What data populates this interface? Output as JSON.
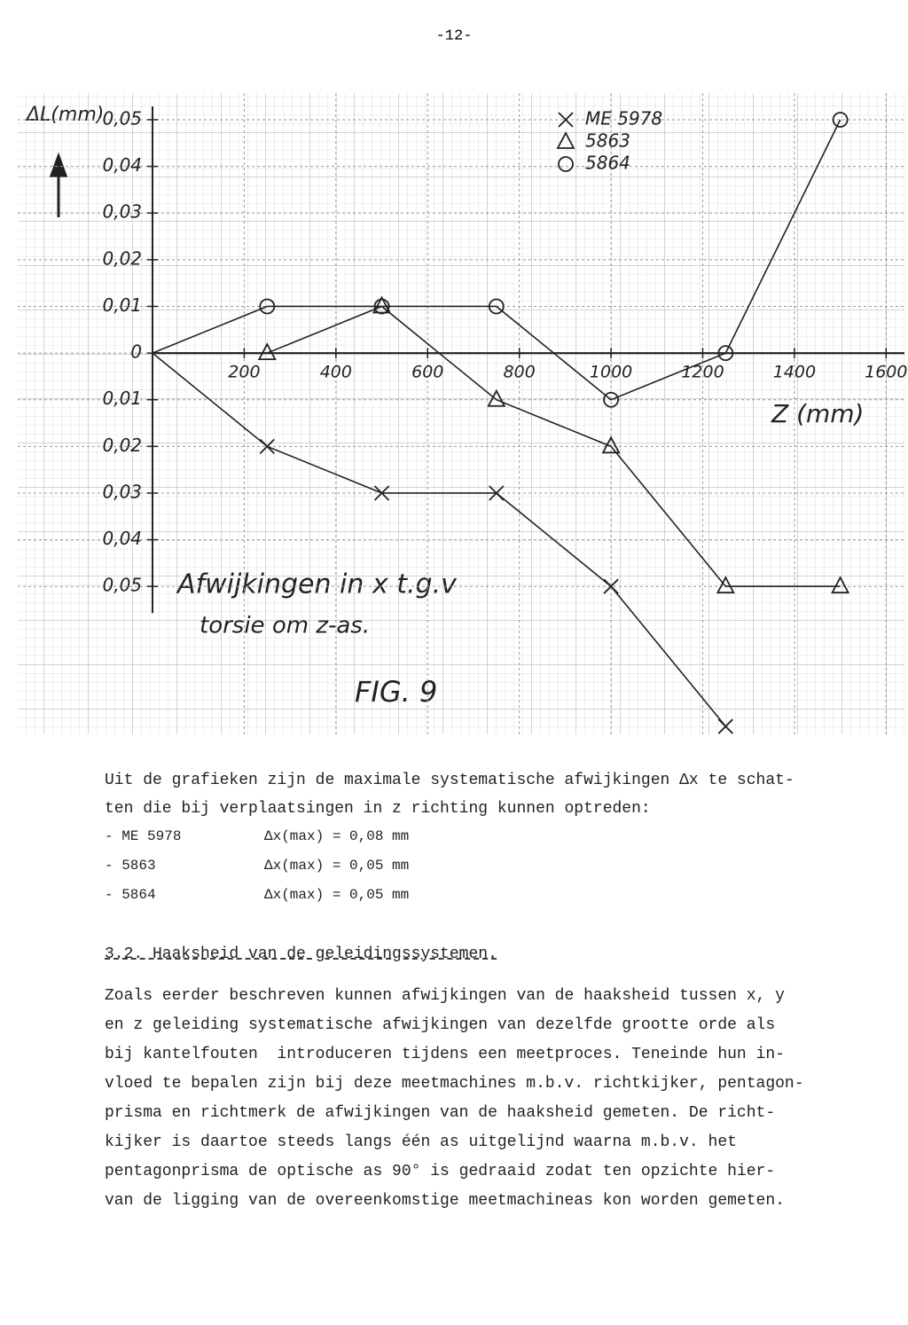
{
  "page_number": "-12-",
  "chart_data": {
    "type": "line",
    "y_label": "ΔL(mm)",
    "x_label": "Z (mm)",
    "annotation": [
      "Afwijkingen in x t.g.v",
      "torsie om z-as."
    ],
    "figure_label": "FIG. 9",
    "x": [
      0,
      250,
      500,
      750,
      1000,
      1250,
      1500
    ],
    "series": [
      {
        "name": "ME 5978",
        "marker": "cross",
        "color": "#222222",
        "values": [
          0,
          -0.02,
          -0.03,
          -0.03,
          -0.05,
          -0.08,
          null
        ]
      },
      {
        "name": "5863",
        "marker": "triangle",
        "color": "#222222",
        "values": [
          0,
          0,
          0.01,
          -0.01,
          -0.02,
          -0.05,
          -0.05
        ]
      },
      {
        "name": "5864",
        "marker": "circle",
        "color": "#222222",
        "values": [
          0,
          0.01,
          0.01,
          0.01,
          -0.01,
          0,
          0.05
        ]
      }
    ],
    "xlim": [
      -294,
      1640
    ],
    "ylim": [
      -0.0817,
      0.0557
    ],
    "xticks": [
      200,
      400,
      600,
      800,
      1000,
      1200,
      1400,
      1600
    ],
    "yticks": [
      {
        "value": 0.05,
        "label": "0,05"
      },
      {
        "value": 0.04,
        "label": "0,04"
      },
      {
        "value": 0.03,
        "label": "0,03"
      },
      {
        "value": 0.02,
        "label": "0,02"
      },
      {
        "value": 0.01,
        "label": "0,01"
      },
      0,
      {
        "value": -0.01,
        "label": "0,01"
      },
      {
        "value": -0.02,
        "label": "0,02"
      },
      {
        "value": -0.03,
        "label": "0,03"
      },
      {
        "value": -0.04,
        "label": "0,04"
      },
      {
        "value": -0.05,
        "label": "0,05"
      }
    ],
    "grid": true
  },
  "text": {
    "intro": [
      "Uit de grafieken zijn de maximale systematische afwijkingen Δx te schat-",
      "ten die bij verplaatsingen in z richting kunnen optreden:"
    ],
    "list": [
      {
        "name": "- ME 5978",
        "value": "Δx(max) = 0,08 mm"
      },
      {
        "name": "- 5863",
        "value": "Δx(max) = 0,05 mm"
      },
      {
        "name": "- 5864",
        "value": "Δx(max) = 0,05 mm"
      }
    ],
    "heading": "3.2. Haaksheid van de geleidingssystemen.",
    "paragraph": [
      "Zoals eerder beschreven kunnen afwijkingen van de haaksheid tussen x, y",
      "en z geleiding systematische afwijkingen van dezelfde grootte orde als",
      "bij kantelfouten  introduceren tijdens een meetproces. Teneinde hun in-",
      "vloed te bepalen zijn bij deze meetmachines m.b.v. richtkijker, pentagon-",
      "prisma en richtmerk de afwijkingen van de haaksheid gemeten. De richt-",
      "kijker is daartoe steeds langs één as uitgelijnd waarna m.b.v. het",
      "pentagonprisma de optische as 90° is gedraaid zodat ten opzichte hier-",
      "van de ligging van de overeenkomstige meetmachineas kon worden gemeten."
    ]
  }
}
